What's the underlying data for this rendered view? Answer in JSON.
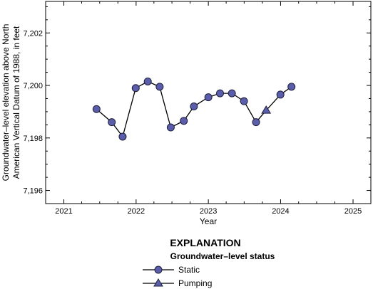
{
  "chart_data": {
    "type": "line",
    "xlabel": "Year",
    "ylabel_lines": [
      "Groundwater–level elevation above North",
      "American Vertical Datum of 1988, in feet"
    ],
    "xlim": [
      "2020-10-01",
      "2025-04-01"
    ],
    "ylim": [
      7195.5,
      7203.2
    ],
    "x_ticks": [
      "2021",
      "2022",
      "2023",
      "2024",
      "2025"
    ],
    "y_ticks": [
      7196,
      7198,
      7200,
      7202
    ],
    "y_tick_labels": [
      "7,196",
      "7,198",
      "7,200",
      "7,202"
    ],
    "grid": false,
    "series": [
      {
        "points": [
          {
            "date": "2021-06-15",
            "value": 7199.1,
            "status": "Static"
          },
          {
            "date": "2021-08-31",
            "value": 7198.6,
            "status": "Static"
          },
          {
            "date": "2021-10-25",
            "value": 7198.05,
            "status": "Static"
          },
          {
            "date": "2021-12-30",
            "value": 7199.9,
            "status": "Static"
          },
          {
            "date": "2022-03-01",
            "value": 7200.15,
            "status": "Static"
          },
          {
            "date": "2022-04-30",
            "value": 7199.95,
            "status": "Static"
          },
          {
            "date": "2022-06-25",
            "value": 7198.4,
            "status": "Static"
          },
          {
            "date": "2022-08-30",
            "value": 7198.65,
            "status": "Static"
          },
          {
            "date": "2022-10-20",
            "value": 7199.2,
            "status": "Static"
          },
          {
            "date": "2023-01-01",
            "value": 7199.55,
            "status": "Static"
          },
          {
            "date": "2023-03-01",
            "value": 7199.7,
            "status": "Static"
          },
          {
            "date": "2023-04-30",
            "value": 7199.7,
            "status": "Static"
          },
          {
            "date": "2023-06-30",
            "value": 7199.4,
            "status": "Static"
          },
          {
            "date": "2023-08-30",
            "value": 7198.6,
            "status": "Static"
          },
          {
            "date": "2023-10-20",
            "value": 7199.05,
            "status": "Pumping"
          },
          {
            "date": "2023-12-31",
            "value": 7199.65,
            "status": "Static"
          },
          {
            "date": "2024-02-25",
            "value": 7199.95,
            "status": "Static"
          }
        ]
      }
    ],
    "legend": {
      "title": "EXPLANATION",
      "subtitle": "Groundwater–level status",
      "placement": "bottom-center",
      "items": [
        {
          "label": "Static",
          "marker": "circle"
        },
        {
          "label": "Pumping",
          "marker": "triangle"
        }
      ]
    },
    "colors": {
      "marker_fill": "#5a5eaa",
      "marker_stroke": "#1e1e3c",
      "line": "#000000",
      "axes": "#000000"
    }
  }
}
